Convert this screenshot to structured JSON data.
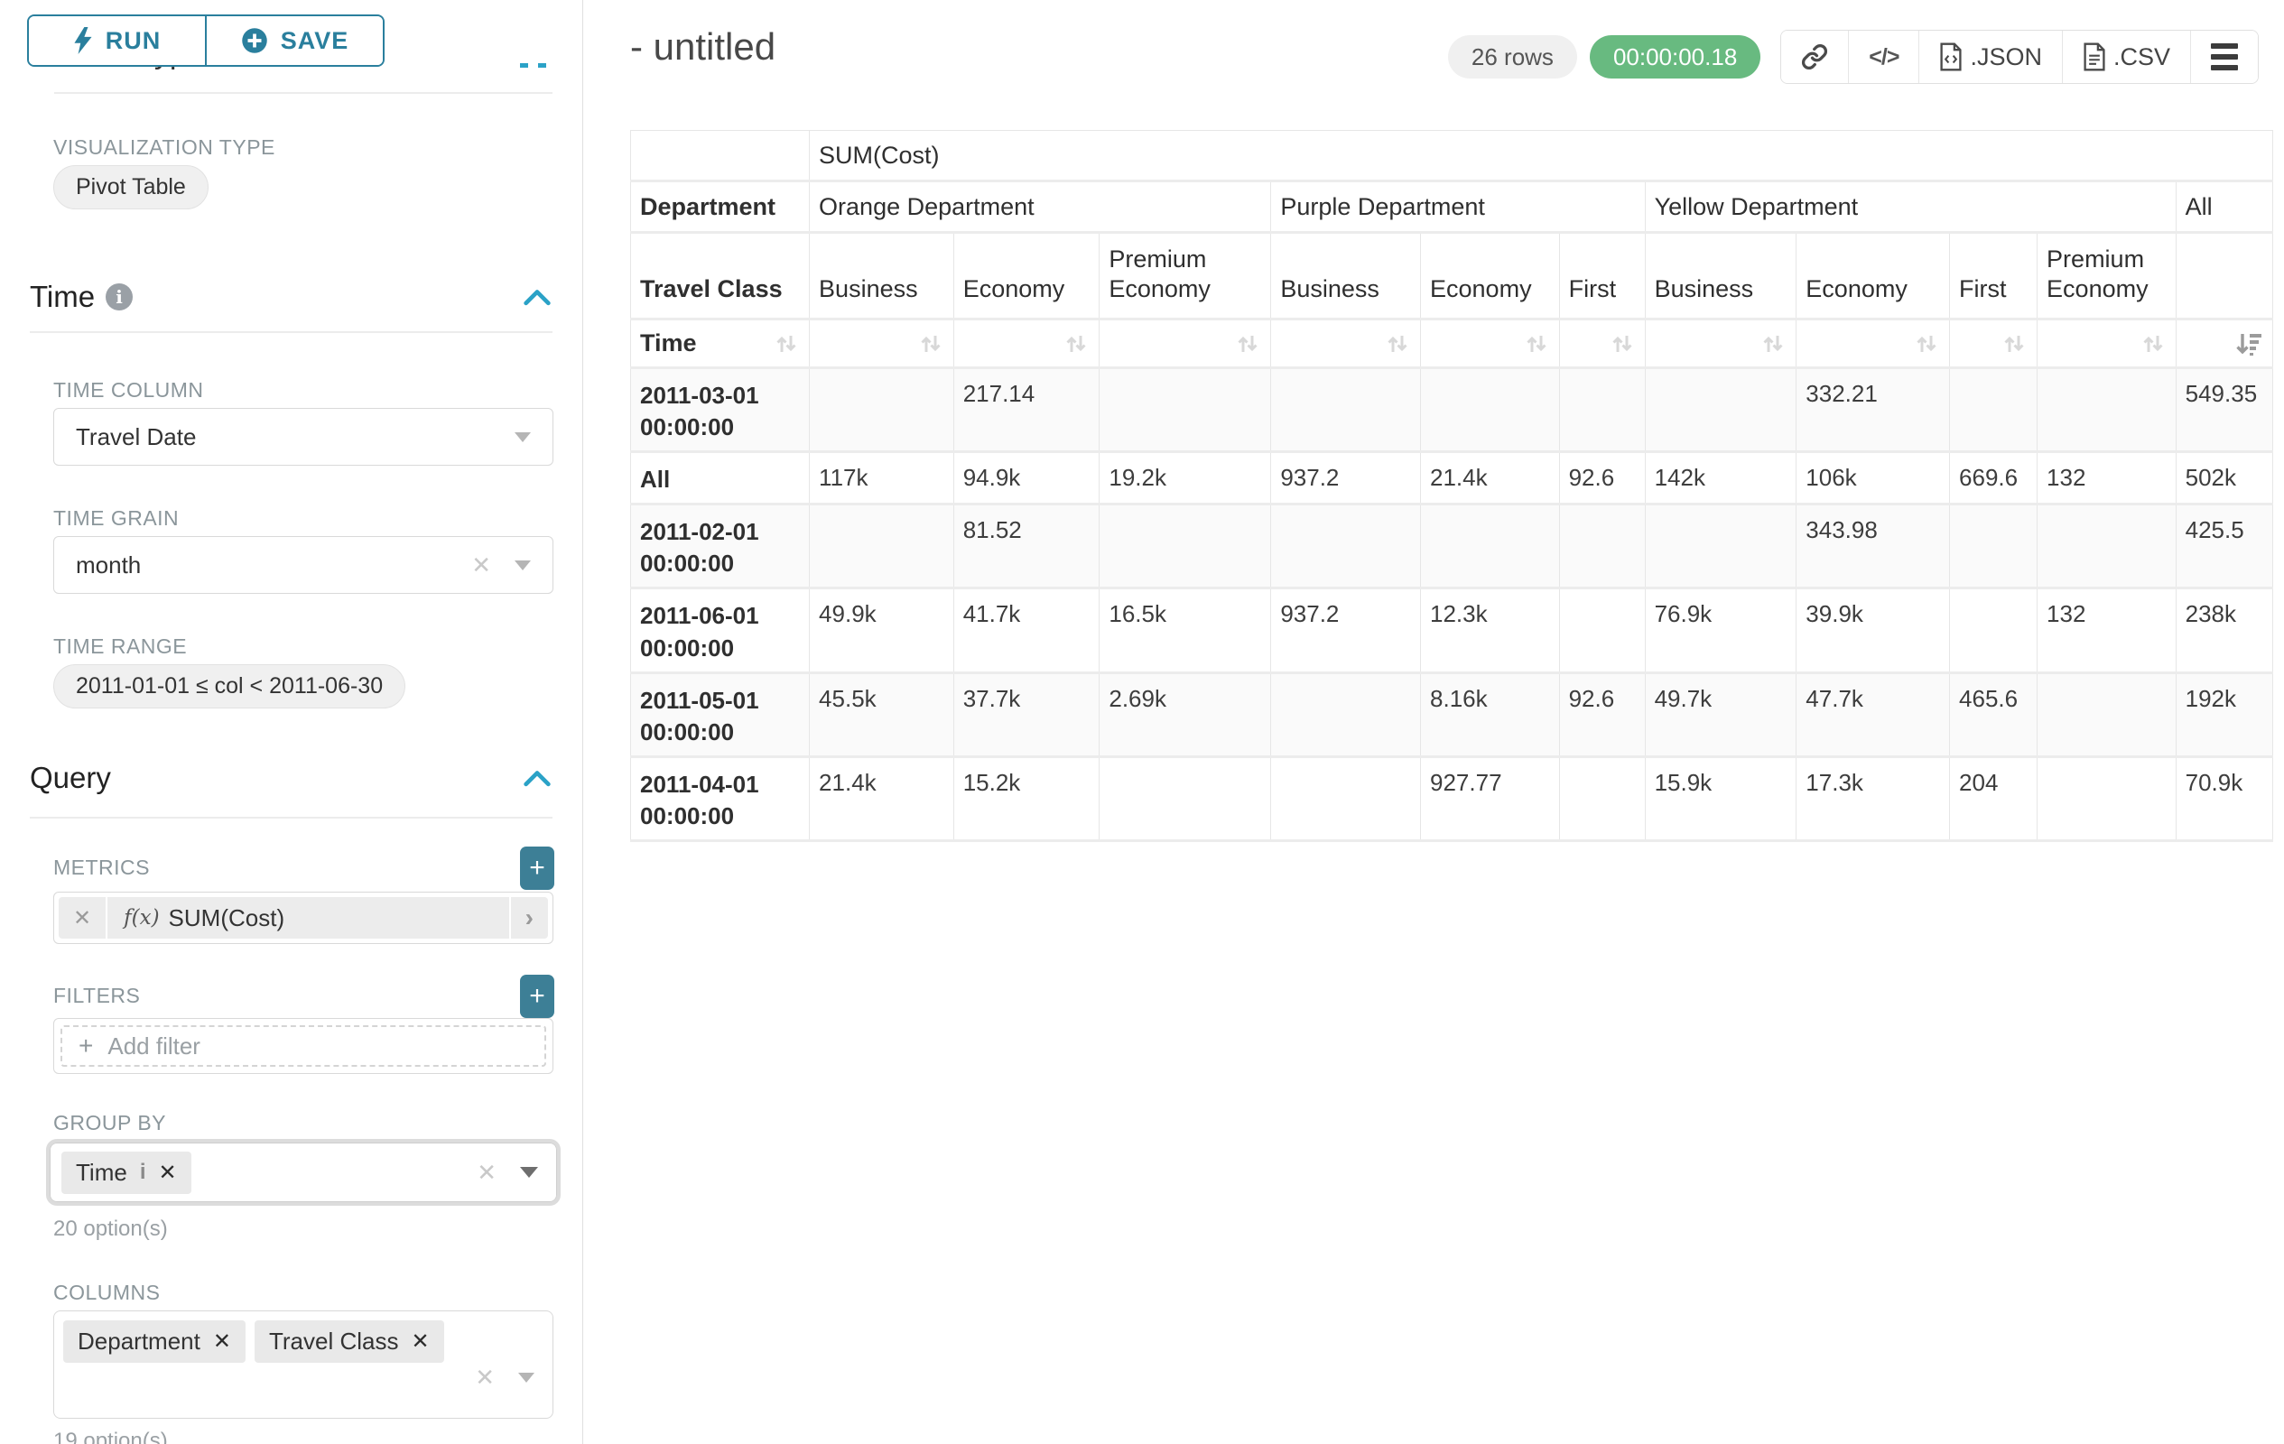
{
  "colors": {
    "accent_teal": "#2a7f9d",
    "plus_button_teal": "#3d7f96",
    "timer_green": "#68ba80",
    "border_gray": "#e6e6e6",
    "label_gray": "#8b969b"
  },
  "sidebar": {
    "section_title": "Chart Type",
    "run_label": "RUN",
    "save_label": "SAVE",
    "viz_type_label": "VISUALIZATION TYPE",
    "viz_type_value": "Pivot Table",
    "time": {
      "title": "Time",
      "time_column_label": "TIME COLUMN",
      "time_column_value": "Travel Date",
      "time_grain_label": "TIME GRAIN",
      "time_grain_value": "month",
      "time_range_label": "TIME RANGE",
      "time_range_value": "2011-01-01 ≤ col < 2011-06-30"
    },
    "query": {
      "title": "Query",
      "metrics_label": "METRICS",
      "metric_fx": "f(x)",
      "metric_value": "SUM(Cost)",
      "filters_label": "FILTERS",
      "add_filter_label": "Add filter",
      "group_by_label": "GROUP BY",
      "group_by_tokens": [
        "Time"
      ],
      "group_by_options": "20 option(s)",
      "columns_label": "COLUMNS",
      "columns_tokens": [
        "Department",
        "Travel Class"
      ],
      "columns_options": "19 option(s)"
    }
  },
  "header": {
    "title": "- untitled",
    "rows_badge": "26 rows",
    "timer": "00:00:00.18",
    "json_label": ".JSON",
    "csv_label": ".CSV"
  },
  "pivot": {
    "metric_header": "SUM(Cost)",
    "department_label": "Department",
    "travel_class_label": "Travel Class",
    "time_label": "Time",
    "groups": [
      {
        "name": "Orange Department",
        "cols": [
          "Business",
          "Economy",
          "Premium Economy"
        ]
      },
      {
        "name": "Purple Department",
        "cols": [
          "Business",
          "Economy",
          "First"
        ]
      },
      {
        "name": "Yellow Department",
        "cols": [
          "Business",
          "Economy",
          "First",
          "Premium Economy"
        ]
      },
      {
        "name": "All",
        "cols": [
          ""
        ]
      }
    ],
    "rows": [
      {
        "label": "2011-03-01 00:00:00",
        "values": [
          "",
          "217.14",
          "",
          "",
          "",
          "",
          "",
          "332.21",
          "",
          "",
          "549.35"
        ]
      },
      {
        "label": "All",
        "values": [
          "117k",
          "94.9k",
          "19.2k",
          "937.2",
          "21.4k",
          "92.6",
          "142k",
          "106k",
          "669.6",
          "132",
          "502k"
        ]
      },
      {
        "label": "2011-02-01 00:00:00",
        "values": [
          "",
          "81.52",
          "",
          "",
          "",
          "",
          "",
          "343.98",
          "",
          "",
          "425.5"
        ]
      },
      {
        "label": "2011-06-01 00:00:00",
        "values": [
          "49.9k",
          "41.7k",
          "16.5k",
          "937.2",
          "12.3k",
          "",
          "76.9k",
          "39.9k",
          "",
          "132",
          "238k"
        ]
      },
      {
        "label": "2011-05-01 00:00:00",
        "values": [
          "45.5k",
          "37.7k",
          "2.69k",
          "",
          "8.16k",
          "92.6",
          "49.7k",
          "47.7k",
          "465.6",
          "",
          "192k"
        ]
      },
      {
        "label": "2011-04-01 00:00:00",
        "values": [
          "21.4k",
          "15.2k",
          "",
          "",
          "927.77",
          "",
          "15.9k",
          "17.3k",
          "204",
          "",
          "70.9k"
        ]
      }
    ]
  }
}
